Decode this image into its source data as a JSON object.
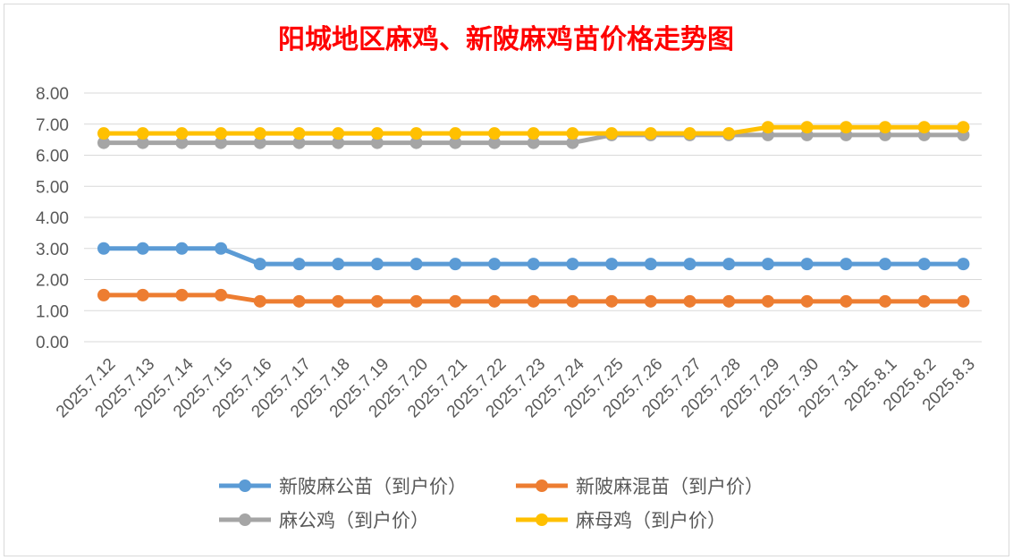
{
  "chart_data": {
    "type": "line",
    "title": "阳城地区麻鸡、新陂麻鸡苗价格走势图",
    "categories": [
      "2025.7.12",
      "2025.7.13",
      "2025.7.14",
      "2025.7.15",
      "2025.7.16",
      "2025.7.17",
      "2025.7.18",
      "2025.7.19",
      "2025.7.20",
      "2025.7.21",
      "2025.7.22",
      "2025.7.23",
      "2025.7.24",
      "2025.7.25",
      "2025.7.26",
      "2025.7.27",
      "2025.7.28",
      "2025.7.29",
      "2025.7.30",
      "2025.7.31",
      "2025.8.1",
      "2025.8.2",
      "2025.8.3"
    ],
    "y_ticks": [
      "0.00",
      "1.00",
      "2.00",
      "3.00",
      "4.00",
      "5.00",
      "6.00",
      "7.00",
      "8.00"
    ],
    "ylim": [
      0,
      8
    ],
    "grid": true,
    "legend_position": "bottom",
    "series": [
      {
        "name": "新陂麻公苗（到户价）",
        "color": "#5B9BD5",
        "values": [
          3.0,
          3.0,
          3.0,
          3.0,
          2.5,
          2.5,
          2.5,
          2.5,
          2.5,
          2.5,
          2.5,
          2.5,
          2.5,
          2.5,
          2.5,
          2.5,
          2.5,
          2.5,
          2.5,
          2.5,
          2.5,
          2.5,
          2.5
        ]
      },
      {
        "name": "新陂麻混苗（到户价）",
        "color": "#ED7D31",
        "values": [
          1.5,
          1.5,
          1.5,
          1.5,
          1.3,
          1.3,
          1.3,
          1.3,
          1.3,
          1.3,
          1.3,
          1.3,
          1.3,
          1.3,
          1.3,
          1.3,
          1.3,
          1.3,
          1.3,
          1.3,
          1.3,
          1.3,
          1.3
        ]
      },
      {
        "name": "麻公鸡（到户价）",
        "color": "#A5A5A5",
        "values": [
          6.4,
          6.4,
          6.4,
          6.4,
          6.4,
          6.4,
          6.4,
          6.4,
          6.4,
          6.4,
          6.4,
          6.4,
          6.4,
          6.65,
          6.65,
          6.65,
          6.65,
          6.65,
          6.65,
          6.65,
          6.65,
          6.65,
          6.65
        ]
      },
      {
        "name": "麻母鸡（到户价）",
        "color": "#FFC000",
        "values": [
          6.7,
          6.7,
          6.7,
          6.7,
          6.7,
          6.7,
          6.7,
          6.7,
          6.7,
          6.7,
          6.7,
          6.7,
          6.7,
          6.7,
          6.7,
          6.7,
          6.7,
          6.9,
          6.9,
          6.9,
          6.9,
          6.9,
          6.9
        ]
      }
    ]
  }
}
